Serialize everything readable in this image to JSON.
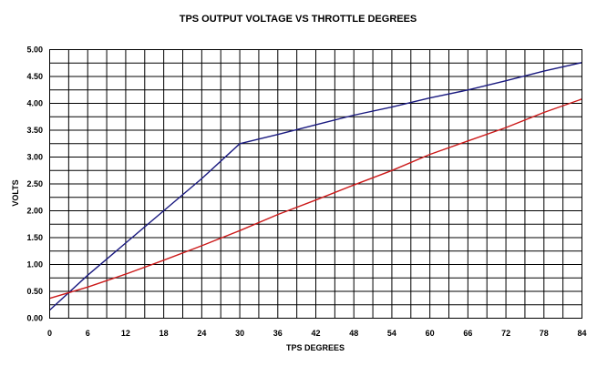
{
  "chart_data": {
    "type": "line",
    "title": "TPS OUTPUT VOLTAGE VS THROTTLE DEGREES",
    "xlabel": "TPS DEGREES",
    "ylabel": "VOLTS",
    "xlim": [
      0,
      84
    ],
    "ylim": [
      0,
      5
    ],
    "x_ticks": [
      0,
      6,
      12,
      18,
      24,
      30,
      36,
      42,
      48,
      54,
      60,
      66,
      72,
      78,
      84
    ],
    "x_tick_labels": [
      "0",
      "6",
      "12",
      "18",
      "24",
      "30",
      "36",
      "42",
      "48",
      "54",
      "60",
      "66",
      "72",
      "78",
      "84"
    ],
    "x_minor_step": 3,
    "y_ticks": [
      0,
      0.5,
      1,
      1.5,
      2,
      2.5,
      3,
      3.5,
      4,
      4.5,
      5
    ],
    "y_tick_labels": [
      "0.00",
      "0.50",
      "1.00",
      "1.50",
      "2.00",
      "2.50",
      "3.00",
      "3.50",
      "4.00",
      "4.50",
      "5.00"
    ],
    "y_minor_step": 0.25,
    "grid": true,
    "series": [
      {
        "color": "#1a1a80",
        "x": [
          0,
          6,
          12,
          18,
          24,
          30,
          36,
          42,
          48,
          54,
          60,
          66,
          72,
          78,
          84
        ],
        "y": [
          0.15,
          0.8,
          1.4,
          2.0,
          2.6,
          3.25,
          3.42,
          3.6,
          3.78,
          3.93,
          4.1,
          4.25,
          4.42,
          4.6,
          4.76
        ]
      },
      {
        "color": "#cc1a1a",
        "x": [
          0,
          6,
          12,
          18,
          24,
          30,
          36,
          42,
          48,
          54,
          60,
          66,
          72,
          78,
          84
        ],
        "y": [
          0.37,
          0.58,
          0.82,
          1.08,
          1.35,
          1.63,
          1.93,
          2.2,
          2.48,
          2.75,
          3.05,
          3.3,
          3.55,
          3.83,
          4.08
        ]
      }
    ]
  }
}
